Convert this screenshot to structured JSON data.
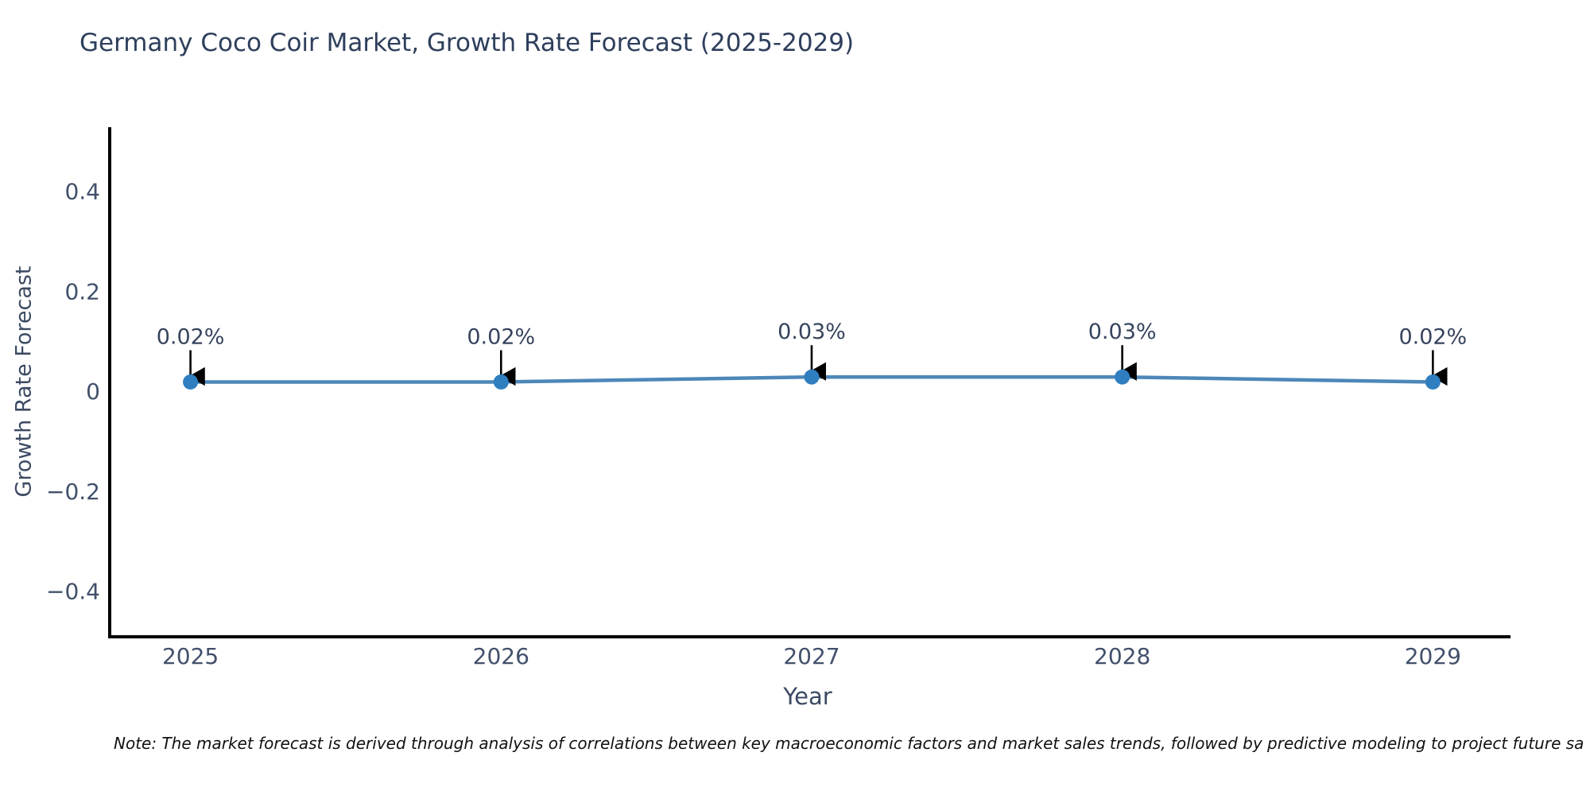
{
  "chart_data": {
    "type": "line",
    "title": "Germany Coco Coir Market, Growth Rate Forecast (2025-2029)",
    "xlabel": "Year",
    "ylabel": "Growth Rate Forecast",
    "x": [
      2025,
      2026,
      2027,
      2028,
      2029
    ],
    "xtick_labels": [
      "2025",
      "2026",
      "2027",
      "2028",
      "2029"
    ],
    "series": [
      {
        "name": "Growth Rate Forecast",
        "values": [
          0.02,
          0.02,
          0.03,
          0.03,
          0.02
        ]
      }
    ],
    "point_labels": [
      "0.02%",
      "0.02%",
      "0.03%",
      "0.03%",
      "0.02%"
    ],
    "yticks": [
      {
        "value": 0.4,
        "label": "0.4"
      },
      {
        "value": 0.2,
        "label": "0.2"
      },
      {
        "value": 0,
        "label": "0"
      },
      {
        "value": -0.2,
        "label": "−0.2"
      },
      {
        "value": -0.4,
        "label": "−0.4"
      }
    ],
    "xlim": [
      2024.74,
      2029.25
    ],
    "ylim": [
      -0.49,
      0.53
    ],
    "grid": false,
    "legend": "none",
    "annotation_style": "black down-arrow from each value label to its data point",
    "colors": {
      "line": "#4d87b9",
      "marker": "#2f7ec0",
      "arrow": "#000000",
      "axis": "#000000",
      "tick_label": "#42506b",
      "axis_title": "#3c4a63",
      "title": "#2e3f5c",
      "note": "#111111",
      "background": "#ffffff"
    }
  },
  "note": {
    "text": "Note: The market forecast is derived through analysis of correlations between key macroeconomic factors and market sales trends, followed by predictive modeling to project future sa"
  }
}
